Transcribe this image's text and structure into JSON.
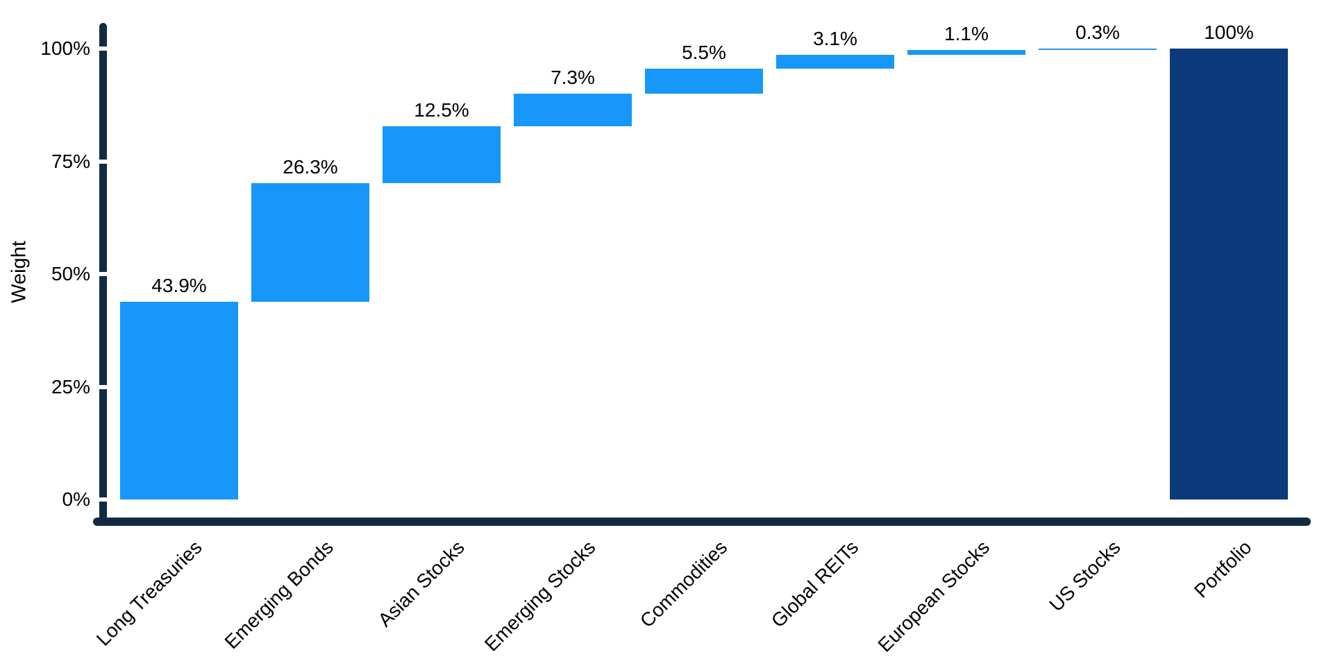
{
  "chart_data": {
    "type": "bar",
    "variant": "waterfall",
    "title": "",
    "xlabel": "",
    "ylabel": "Weight",
    "categories": [
      "Long Treasuries",
      "Emerging Bonds",
      "Asian Stocks",
      "Emerging Stocks",
      "Commodities",
      "Global REITs",
      "European Stocks",
      "US Stocks",
      "Portfolio"
    ],
    "values": [
      43.9,
      26.3,
      12.5,
      7.3,
      5.5,
      3.1,
      1.1,
      0.3,
      100
    ],
    "bar_labels": [
      "43.9%",
      "26.3%",
      "12.5%",
      "7.3%",
      "5.5%",
      "3.1%",
      "1.1%",
      "0.3%",
      "100%"
    ],
    "starts": [
      0,
      43.9,
      70.2,
      82.7,
      90.0,
      95.5,
      98.6,
      99.7,
      0
    ],
    "ends": [
      43.9,
      70.2,
      82.7,
      90.0,
      95.5,
      98.6,
      99.7,
      100.0,
      100.0
    ],
    "is_total": [
      false,
      false,
      false,
      false,
      false,
      false,
      false,
      false,
      true
    ],
    "y_ticks": [
      {
        "value": 0,
        "label": "0%"
      },
      {
        "value": 25,
        "label": "25%"
      },
      {
        "value": 50,
        "label": "50%"
      },
      {
        "value": 75,
        "label": "75%"
      },
      {
        "value": 100,
        "label": "100%"
      }
    ],
    "ylim": [
      0,
      100
    ],
    "grid": false,
    "legend": "none",
    "colors": {
      "segment": "#1697F9",
      "total": "#0B3A7C",
      "axis": "#112B42",
      "text": "#000000",
      "background": "#FFFFFF"
    }
  }
}
